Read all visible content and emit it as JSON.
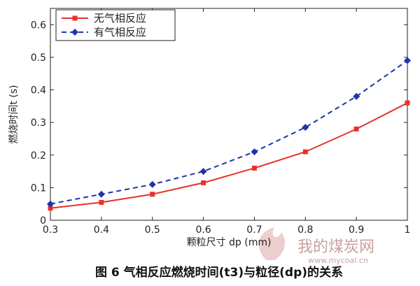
{
  "chart_data": {
    "type": "line",
    "x": [
      0.3,
      0.4,
      0.5,
      0.6,
      0.7,
      0.8,
      0.9,
      1.0
    ],
    "xlim": [
      0.3,
      1.0
    ],
    "ylim": [
      0,
      0.65
    ],
    "xticks": [
      "0.3",
      "0.4",
      "0.5",
      "0.6",
      "0.7",
      "0.8",
      "0.9",
      "1"
    ],
    "yticks": [
      "0",
      "0.1",
      "0.2",
      "0.3",
      "0.4",
      "0.5",
      "0.6"
    ],
    "xlabel": "颗粒尺寸 dp (mm)",
    "ylabel": "燃烧时间t (s)",
    "grid": false,
    "legend_position": "top-left",
    "series": [
      {
        "name": "无气相反应",
        "color": "#e8312b",
        "line_style": "solid",
        "marker": "square",
        "values": [
          0.037,
          0.055,
          0.08,
          0.115,
          0.16,
          0.21,
          0.28,
          0.36
        ]
      },
      {
        "name": "有气相反应",
        "color": "#1f35a8",
        "line_style": "dashed",
        "marker": "diamond",
        "values": [
          0.05,
          0.08,
          0.11,
          0.15,
          0.21,
          0.285,
          0.38,
          0.49
        ]
      }
    ]
  },
  "caption": "图 6  气相反应燃烧时间(t3)与粒径(dp)的关系",
  "watermark": {
    "text": "我的煤炭网",
    "url": "www.mycoal.cn"
  }
}
